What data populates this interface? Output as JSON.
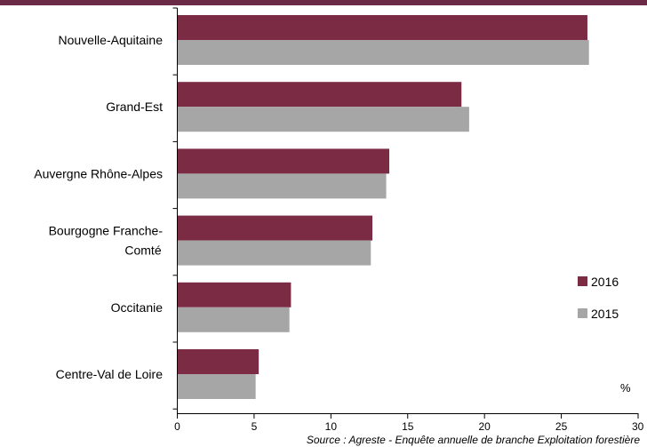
{
  "chart_data": {
    "type": "bar",
    "orientation": "horizontal",
    "categories": [
      [
        "Nouvelle-Aquitaine"
      ],
      [
        "Grand-Est"
      ],
      [
        "Auvergne Rhône-Alpes"
      ],
      [
        "Bourgogne Franche-",
        "Comté"
      ],
      [
        "Occitanie"
      ],
      [
        "Centre-Val de Loire"
      ]
    ],
    "series": [
      {
        "name": "2016",
        "color": "#7b2c44",
        "values": [
          26.7,
          18.5,
          13.8,
          12.7,
          7.4,
          5.3
        ]
      },
      {
        "name": "2015",
        "color": "#a6a6a6",
        "values": [
          26.8,
          19.0,
          13.6,
          12.6,
          7.3,
          5.1
        ]
      }
    ],
    "xlim": [
      0,
      30
    ],
    "xticks": [
      0,
      5,
      10,
      15,
      20,
      25,
      30
    ],
    "unit_label": "%",
    "legend_position": "right",
    "grid": false,
    "source": "Source : Agreste - Enquête annuelle de branche Exploitation forestière",
    "top_band_color": "#6b2a45"
  }
}
